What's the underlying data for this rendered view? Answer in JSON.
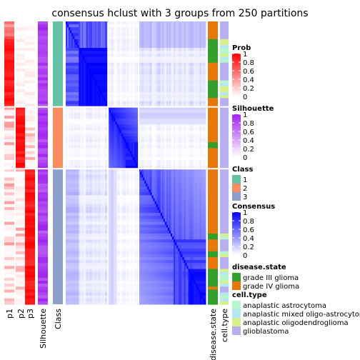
{
  "title": "consensus hclust with 3 groups from 250 partitions",
  "chart_data": {
    "type": "heatmap",
    "title": "consensus hclust with 3 groups from 250 partitions",
    "column_labels": [
      "p1",
      "p2",
      "p3",
      "Silhouette",
      "Class",
      "disease.state",
      "cell.type"
    ],
    "group_sizes": [
      29,
      21,
      46
    ],
    "legends": [
      {
        "key": "prob",
        "title": "Prob",
        "ticks": [
          "1",
          "0.8",
          "0.6",
          "0.4",
          "0.2",
          "0"
        ],
        "low_color": "#ffffff",
        "high_color": "#ff0000"
      },
      {
        "key": "sil",
        "title": "Silhouette",
        "ticks": [
          "1",
          "0.8",
          "0.6",
          "0.4",
          "0.2",
          "0"
        ],
        "low_color": "#ffffff",
        "high_color": "#a020f0"
      },
      {
        "key": "class",
        "title": "Class",
        "items": [
          {
            "label": "1",
            "color": "#66c2a5"
          },
          {
            "label": "2",
            "color": "#fc8d62"
          },
          {
            "label": "3",
            "color": "#8da0cb"
          }
        ]
      },
      {
        "key": "cons",
        "title": "Consensus",
        "ticks": [
          "1",
          "0.8",
          "0.6",
          "0.4",
          "0.2",
          "0"
        ],
        "low_color": "#ffffff",
        "high_color": "#0000ff"
      },
      {
        "key": "disease",
        "title": "disease.state",
        "items": [
          {
            "label": "grade III glioma",
            "color": "#33a02c"
          },
          {
            "label": "grade IV glioma",
            "color": "#e6780a"
          }
        ]
      },
      {
        "key": "cell",
        "title": "cell.type",
        "items": [
          {
            "label": "anaplastic astrocytoma",
            "color": "#b8f5cc"
          },
          {
            "label": "anaplastic mixed oligo-astrocytoma",
            "color": "#b2e8f0"
          },
          {
            "label": "anaplastic oligodendroglioma",
            "color": "#d6f08c"
          },
          {
            "label": "glioblastoma",
            "color": "#b8b0ee"
          }
        ]
      }
    ]
  }
}
